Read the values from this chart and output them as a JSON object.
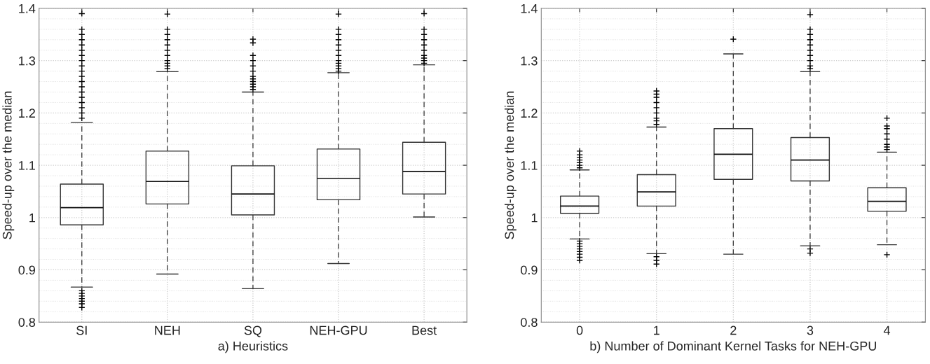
{
  "chart_data": [
    {
      "type": "box",
      "xlabel": "a) Heuristics",
      "ylabel": "Speed-up over the median",
      "categories": [
        "SI",
        "NEH",
        "SQ",
        "NEH-GPU",
        "Best"
      ],
      "ylim": [
        0.8,
        1.4
      ],
      "yticks": [
        0.8,
        0.9,
        1,
        1.1,
        1.2,
        1.3,
        1.4
      ],
      "grid": true,
      "boxes": [
        {
          "low": 0.867,
          "q1": 0.986,
          "median": 1.019,
          "q3": 1.064,
          "high": 1.182,
          "outliers": [
            1.19,
            1.2,
            1.21,
            1.22,
            1.23,
            1.24,
            1.25,
            1.26,
            1.27,
            1.28,
            1.29,
            1.3,
            1.31,
            1.32,
            1.33,
            1.34,
            1.35,
            1.36,
            1.39,
            0.86,
            0.855,
            0.85,
            0.845,
            0.84,
            0.835,
            0.828
          ]
        },
        {
          "low": 0.892,
          "q1": 1.026,
          "median": 1.069,
          "q3": 1.127,
          "high": 1.279,
          "outliers": [
            1.285,
            1.29,
            1.295,
            1.3,
            1.31,
            1.32,
            1.33,
            1.34,
            1.35,
            1.36,
            1.389
          ]
        },
        {
          "low": 0.864,
          "q1": 1.005,
          "median": 1.045,
          "q3": 1.099,
          "high": 1.24,
          "outliers": [
            1.245,
            1.25,
            1.255,
            1.26,
            1.265,
            1.27,
            1.28,
            1.29,
            1.3,
            1.31,
            1.334,
            1.341
          ]
        },
        {
          "low": 0.912,
          "q1": 1.034,
          "median": 1.075,
          "q3": 1.131,
          "high": 1.277,
          "outliers": [
            1.28,
            1.285,
            1.29,
            1.295,
            1.3,
            1.31,
            1.32,
            1.33,
            1.34,
            1.35,
            1.36,
            1.389
          ]
        },
        {
          "low": 1.001,
          "q1": 1.045,
          "median": 1.088,
          "q3": 1.144,
          "high": 1.292,
          "outliers": [
            1.295,
            1.3,
            1.305,
            1.31,
            1.32,
            1.33,
            1.34,
            1.35,
            1.36,
            1.39
          ]
        }
      ]
    },
    {
      "type": "box",
      "xlabel": "b) Number of Dominant Kernel Tasks for NEH-GPU",
      "ylabel": "Speed-up over the median",
      "categories": [
        "0",
        "1",
        "2",
        "3",
        "4"
      ],
      "ylim": [
        0.8,
        1.4
      ],
      "yticks": [
        0.8,
        0.9,
        1,
        1.1,
        1.2,
        1.3,
        1.4
      ],
      "grid": true,
      "boxes": [
        {
          "low": 0.959,
          "q1": 1.008,
          "median": 1.022,
          "q3": 1.041,
          "high": 1.091,
          "outliers": [
            1.095,
            1.1,
            1.105,
            1.11,
            1.115,
            1.12,
            1.127,
            0.955,
            0.95,
            0.945,
            0.94,
            0.935,
            0.93,
            0.924,
            0.918
          ]
        },
        {
          "low": 0.931,
          "q1": 1.022,
          "median": 1.049,
          "q3": 1.082,
          "high": 1.173,
          "outliers": [
            1.178,
            1.185,
            1.19,
            1.2,
            1.21,
            1.22,
            1.23,
            1.236,
            1.242,
            0.925,
            0.918,
            0.911
          ]
        },
        {
          "low": 0.93,
          "q1": 1.073,
          "median": 1.121,
          "q3": 1.17,
          "high": 1.313,
          "outliers": [
            1.341
          ]
        },
        {
          "low": 0.946,
          "q1": 1.07,
          "median": 1.11,
          "q3": 1.153,
          "high": 1.279,
          "outliers": [
            1.285,
            1.29,
            1.3,
            1.31,
            1.32,
            1.33,
            1.34,
            1.35,
            1.36,
            1.388,
            0.94,
            0.932
          ]
        },
        {
          "low": 0.948,
          "q1": 1.012,
          "median": 1.031,
          "q3": 1.057,
          "high": 1.125,
          "outliers": [
            1.13,
            1.135,
            1.14,
            1.15,
            1.16,
            1.17,
            1.175,
            1.19,
            0.929
          ]
        }
      ]
    }
  ]
}
